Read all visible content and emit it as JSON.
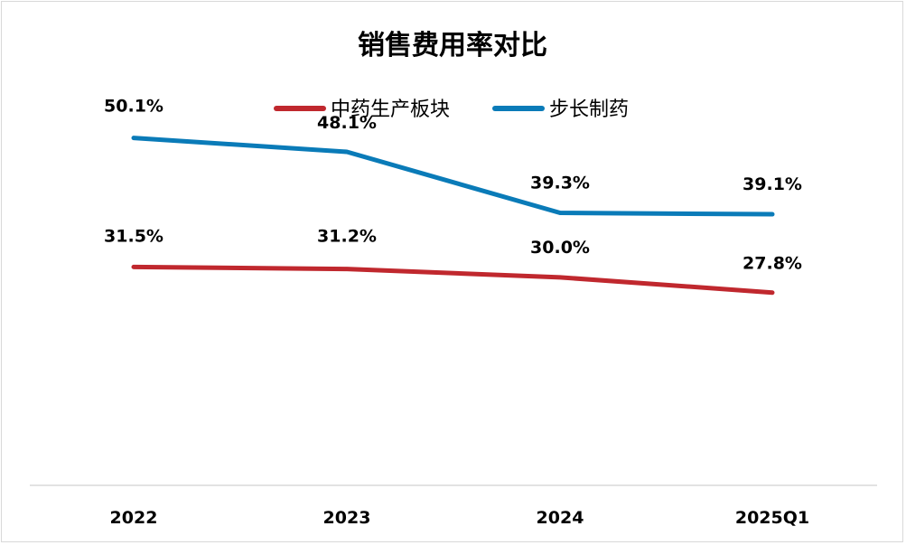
{
  "chart_data": {
    "type": "line",
    "title": "销售费用率对比",
    "categories": [
      "2022",
      "2023",
      "2024",
      "2025Q1"
    ],
    "series": [
      {
        "name": "中药生产板块",
        "values": [
          31.5,
          31.2,
          30.0,
          27.8
        ],
        "labels": [
          "31.5%",
          "31.2%",
          "30.0%",
          "27.8%"
        ],
        "color": "#c0282e"
      },
      {
        "name": "步长制药",
        "values": [
          50.1,
          48.1,
          39.3,
          39.1
        ],
        "labels": [
          "50.1%",
          "48.1%",
          "39.3%",
          "39.1%"
        ],
        "color": "#0a7bb8"
      }
    ],
    "ylim": [
      0,
      70
    ],
    "grid": false,
    "legend_position": "top-center",
    "axis_line_color": "#d9d9d9"
  }
}
